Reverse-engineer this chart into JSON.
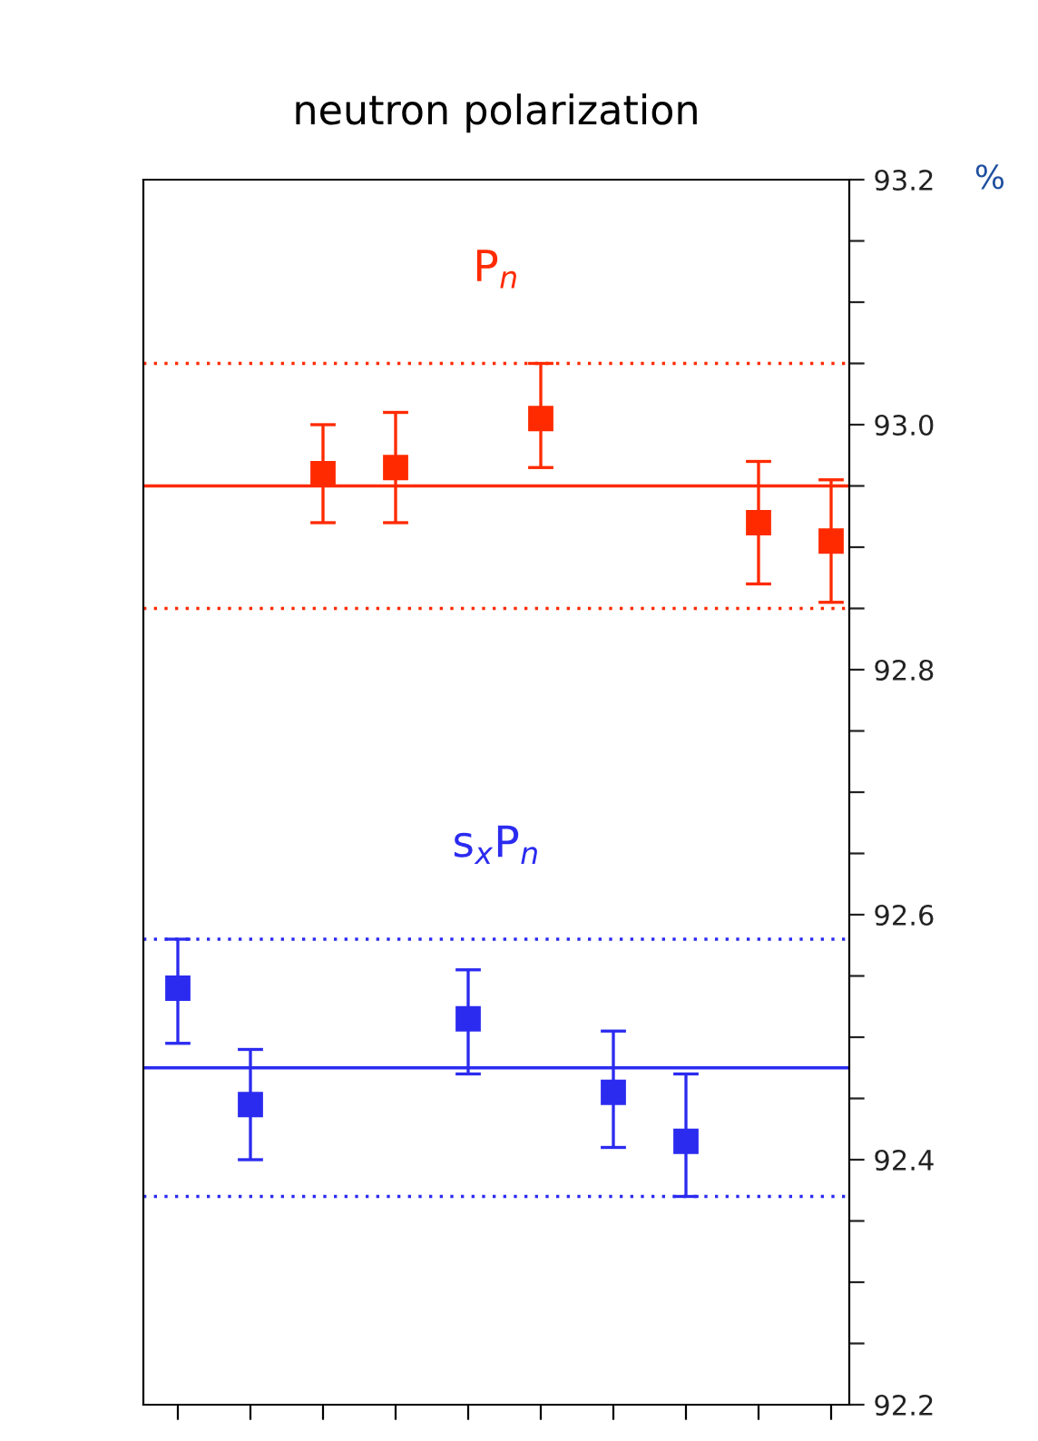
{
  "chart_data": {
    "type": "scatter",
    "title": "neutron polarization",
    "ylabel": "%",
    "marker": "square",
    "legend": false,
    "grid": false,
    "tick_labels": "y",
    "categories": [
      null,
      null,
      null,
      null,
      null,
      null,
      null,
      null,
      null,
      null
    ],
    "ylim": [
      92.2,
      93.2
    ],
    "yticks": [
      {
        "value": 92.2,
        "label": "92.2"
      },
      {
        "value": 92.25,
        "label": null
      },
      {
        "value": 92.3,
        "label": null
      },
      {
        "value": 92.35,
        "label": null
      },
      {
        "value": 92.4,
        "label": "92.4"
      },
      {
        "value": 92.45,
        "label": null
      },
      {
        "value": 92.5,
        "label": null
      },
      {
        "value": 92.55,
        "label": null
      },
      {
        "value": 92.6,
        "label": "92.6"
      },
      {
        "value": 92.65,
        "label": null
      },
      {
        "value": 92.7,
        "label": null
      },
      {
        "value": 92.75,
        "label": null
      },
      {
        "value": 92.8,
        "label": "92.8"
      },
      {
        "value": 92.85,
        "label": null
      },
      {
        "value": 92.9,
        "label": null
      },
      {
        "value": 92.95,
        "label": null
      },
      {
        "value": 93.0,
        "label": "93.0"
      },
      {
        "value": 93.05,
        "label": null
      },
      {
        "value": 93.1,
        "label": null
      },
      {
        "value": 93.15,
        "label": null
      },
      {
        "value": 93.2,
        "label": "93.2"
      }
    ],
    "series": [
      {
        "name": "P$_{n}$",
        "color": "#ff2a00",
        "values": [
          null,
          null,
          92.96,
          92.965,
          null,
          93.005,
          null,
          null,
          92.92,
          92.905
        ],
        "errors": [
          null,
          null,
          [
            92.92,
            93.0
          ],
          [
            92.92,
            93.01
          ],
          null,
          [
            92.965,
            93.05
          ],
          null,
          null,
          [
            92.87,
            92.97
          ],
          [
            92.855,
            92.955
          ]
        ]
      },
      {
        "name": "s$_{x}$P$_{n}$",
        "color": "#2b2bf0",
        "values": [
          92.54,
          92.445,
          null,
          null,
          92.515,
          null,
          92.455,
          92.415,
          null,
          null
        ],
        "errors": [
          [
            92.495,
            92.58
          ],
          [
            92.4,
            92.49
          ],
          null,
          null,
          [
            92.47,
            92.555
          ],
          null,
          [
            92.41,
            92.505
          ],
          [
            92.37,
            92.47
          ],
          null,
          null
        ]
      }
    ],
    "ref_lines": [
      {
        "axis": "y",
        "value": 92.95,
        "color": "#ff2a00",
        "line_style": "solid"
      },
      {
        "axis": "y",
        "value": 93.05,
        "color": "#ff2a00",
        "line_style": "dotted"
      },
      {
        "axis": "y",
        "value": 92.85,
        "color": "#ff2a00",
        "line_style": "dotted"
      },
      {
        "axis": "y",
        "value": 92.475,
        "color": "#2b2bf0",
        "line_style": "solid"
      },
      {
        "axis": "y",
        "value": 92.58,
        "color": "#2b2bf0",
        "line_style": "dotted"
      },
      {
        "axis": "y",
        "value": 92.37,
        "color": "#2b2bf0",
        "line_style": "dotted"
      }
    ]
  }
}
